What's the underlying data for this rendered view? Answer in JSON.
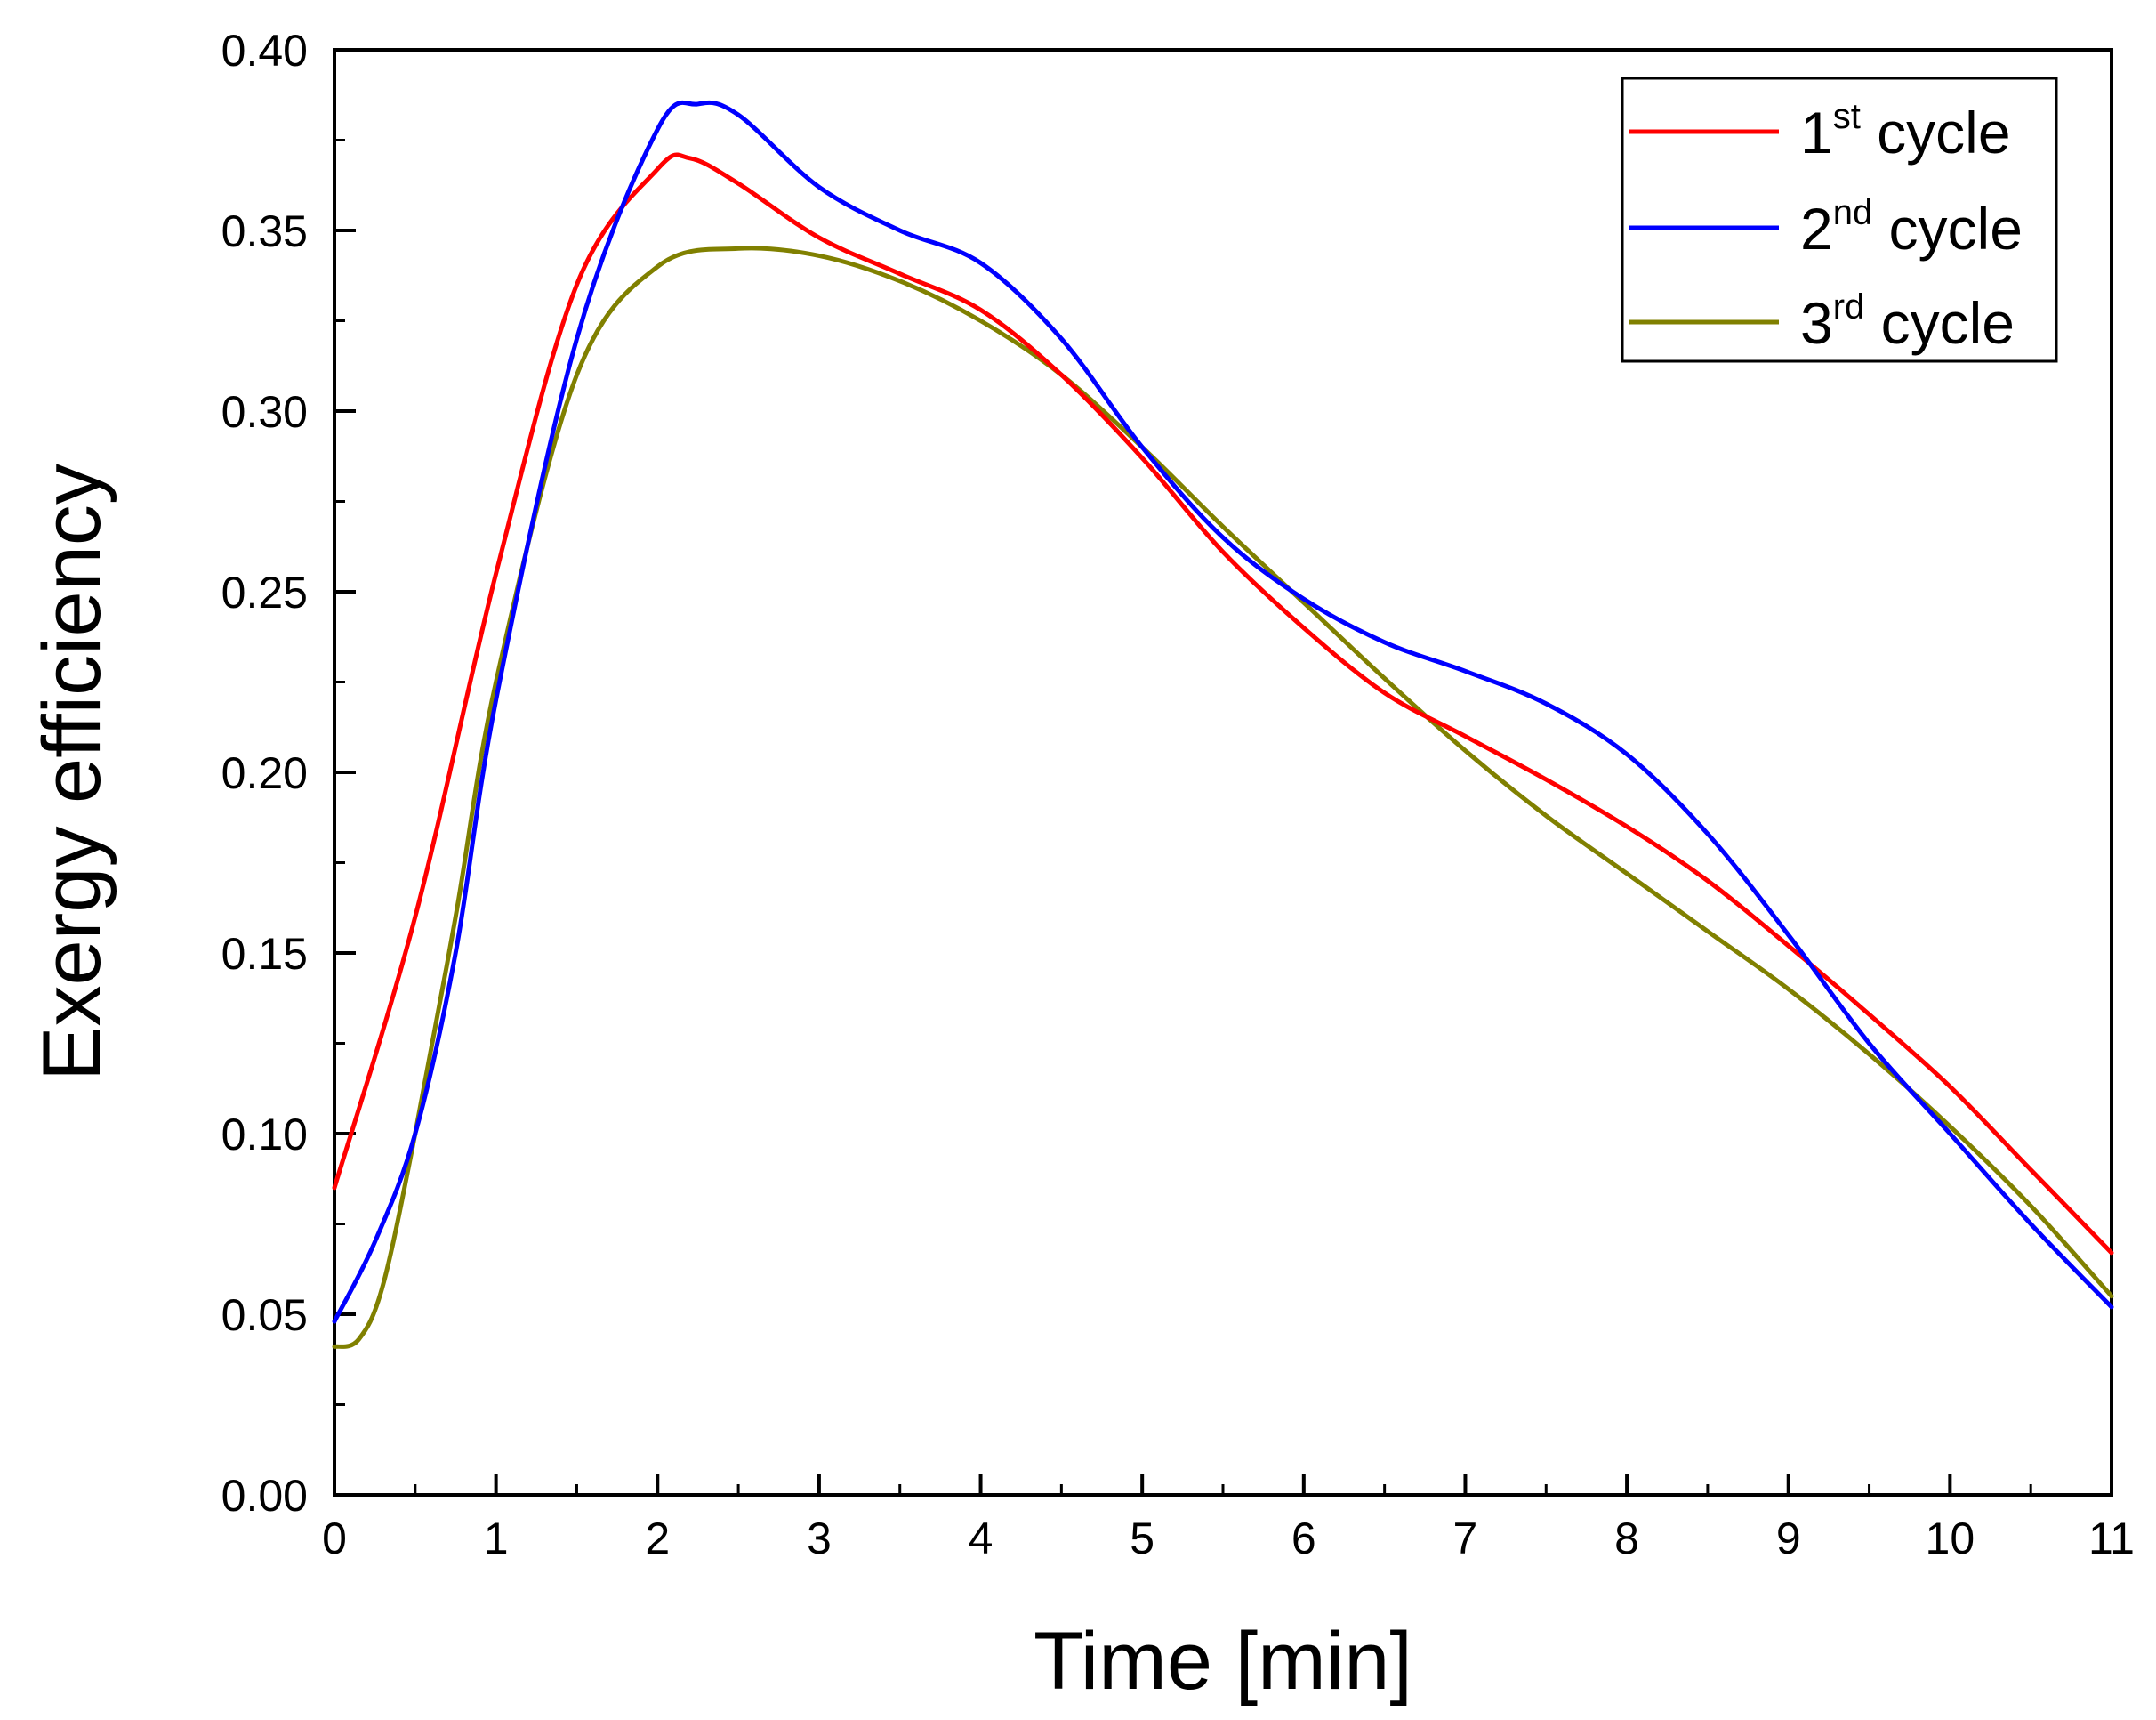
{
  "chart_data": {
    "type": "line",
    "title": "",
    "xlabel": "Time [min]",
    "ylabel": "Exergy efficiency",
    "xlim": [
      0,
      11
    ],
    "ylim": [
      0,
      0.4
    ],
    "xticks": [
      0,
      1,
      2,
      3,
      4,
      5,
      6,
      7,
      8,
      9,
      10,
      11
    ],
    "xtick_labels": [
      "0",
      "1",
      "2",
      "3",
      "4",
      "5",
      "6",
      "7",
      "8",
      "9",
      "10",
      "11"
    ],
    "yticks": [
      0,
      0.05,
      0.1,
      0.15,
      0.2,
      0.25,
      0.3,
      0.35,
      0.4
    ],
    "ytick_labels": [
      "0.00",
      "0.05",
      "0.10",
      "0.15",
      "0.20",
      "0.25",
      "0.30",
      "0.35",
      "0.40"
    ],
    "grid": false,
    "legend_position": "top-right",
    "series": [
      {
        "name": "1st cycle",
        "label_base": "1",
        "label_sup": "st",
        "label_tail": " cycle",
        "color": "#ff0000",
        "x": [
          0,
          0.5,
          1,
          1.5,
          2,
          2.2,
          2.5,
          3,
          3.5,
          4,
          4.5,
          5,
          5.5,
          6,
          6.5,
          7,
          7.5,
          8,
          8.5,
          9,
          9.5,
          10,
          10.5,
          11
        ],
        "y": [
          0.085,
          0.16,
          0.255,
          0.335,
          0.367,
          0.37,
          0.363,
          0.348,
          0.338,
          0.328,
          0.31,
          0.287,
          0.261,
          0.24,
          0.222,
          0.21,
          0.198,
          0.185,
          0.17,
          0.152,
          0.133,
          0.113,
          0.09,
          0.067
        ]
      },
      {
        "name": "2nd cycle",
        "label_base": "2",
        "label_sup": "nd",
        "label_tail": " cycle",
        "color": "#0000ff",
        "x": [
          0,
          0.25,
          0.5,
          0.75,
          1,
          1.5,
          2,
          2.25,
          2.5,
          3,
          3.5,
          4,
          4.5,
          5,
          5.5,
          6,
          6.5,
          7,
          7.5,
          8,
          8.5,
          9,
          9.5,
          10,
          10.5,
          11
        ],
        "y": [
          0.048,
          0.07,
          0.1,
          0.15,
          0.22,
          0.32,
          0.378,
          0.385,
          0.382,
          0.362,
          0.35,
          0.341,
          0.32,
          0.29,
          0.265,
          0.248,
          0.236,
          0.228,
          0.219,
          0.205,
          0.183,
          0.155,
          0.125,
          0.1,
          0.075,
          0.052
        ]
      },
      {
        "name": "3rd cycle",
        "label_base": "3",
        "label_sup": "rd",
        "label_tail": " cycle",
        "color": "#808000",
        "x": [
          0,
          0.15,
          0.3,
          0.5,
          0.75,
          1,
          1.5,
          2,
          2.5,
          3,
          3.5,
          4,
          4.5,
          5,
          5.5,
          6,
          6.5,
          7,
          7.5,
          8,
          8.5,
          9,
          9.5,
          10,
          10.5,
          11
        ],
        "y": [
          0.041,
          0.043,
          0.058,
          0.1,
          0.16,
          0.225,
          0.31,
          0.34,
          0.345,
          0.343,
          0.336,
          0.325,
          0.31,
          0.29,
          0.268,
          0.247,
          0.226,
          0.206,
          0.188,
          0.172,
          0.156,
          0.14,
          0.122,
          0.102,
          0.08,
          0.055
        ]
      }
    ]
  }
}
